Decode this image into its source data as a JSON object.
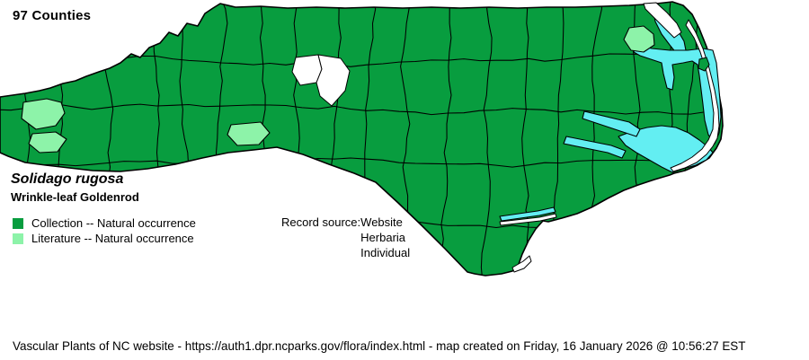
{
  "title": "97 Counties",
  "species": {
    "scientific": "Solidago rugosa",
    "common": "Wrinkle-leaf Goldenrod"
  },
  "legend": [
    {
      "label": "Collection -- Natural occurrence",
      "color": "#089d3f"
    },
    {
      "label": "Literature -- Natural occurrence",
      "color": "#8df3a9"
    }
  ],
  "record_source": {
    "label": "Record source:",
    "values": [
      "Website",
      "Herbaria",
      "Individual"
    ]
  },
  "footer": "Vascular Plants of NC website - https://auth1.dpr.ncparks.gov/flora/index.html - map created on Friday, 16 January 2026 @ 10:56:27 EST",
  "map": {
    "region": "North Carolina county distribution map",
    "colors": {
      "collection": "#089d3f",
      "literature": "#8df3a9",
      "water": "#63eef2",
      "no_record": "#ffffff",
      "border": "#000000"
    }
  }
}
